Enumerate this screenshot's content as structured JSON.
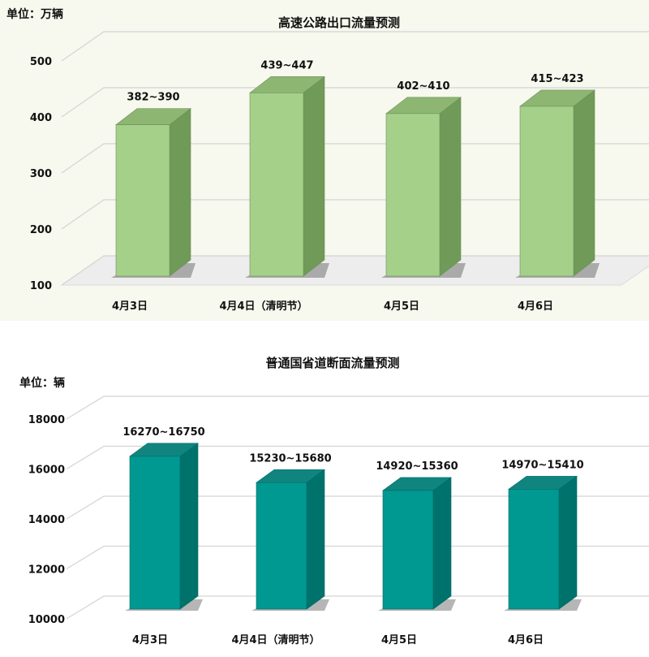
{
  "chart_data": [
    {
      "type": "bar",
      "title": "高速公路出口流量预测",
      "unit_label": "单位：万辆",
      "categories": [
        "4月3日",
        "4月4日（清明节）",
        "4月5日",
        "4月6日"
      ],
      "series": [
        {
          "low": [
            382,
            439,
            402,
            415
          ],
          "high": [
            390,
            447,
            410,
            423
          ]
        }
      ],
      "data_labels": [
        "382~390",
        "439~447",
        "402~410",
        "415~423"
      ],
      "ylim": [
        100,
        500
      ],
      "yticks": [
        100,
        200,
        300,
        400,
        500
      ],
      "colors": {
        "front": "#a5d08a",
        "side": "#6f9a57",
        "top": "#8eb673",
        "outline": "#6f8f5a"
      },
      "grid": true
    },
    {
      "type": "bar",
      "title": "普通国省道断面流量预测",
      "unit_label": "单位：辆",
      "categories": [
        "4月3日",
        "4月4日（清明节）",
        "4月5日",
        "4月6日"
      ],
      "series": [
        {
          "low": [
            16270,
            15230,
            14920,
            14970
          ],
          "high": [
            16750,
            15680,
            15360,
            15410
          ]
        }
      ],
      "data_labels": [
        "16270~16750",
        "15230~15680",
        "14920~15360",
        "14970~15410"
      ],
      "ylim": [
        10000,
        18000
      ],
      "yticks": [
        10000,
        12000,
        14000,
        16000,
        18000
      ],
      "colors": {
        "front": "#009992",
        "side": "#00726c",
        "top": "#10857f",
        "outline": "#006a65"
      },
      "grid": true
    }
  ]
}
